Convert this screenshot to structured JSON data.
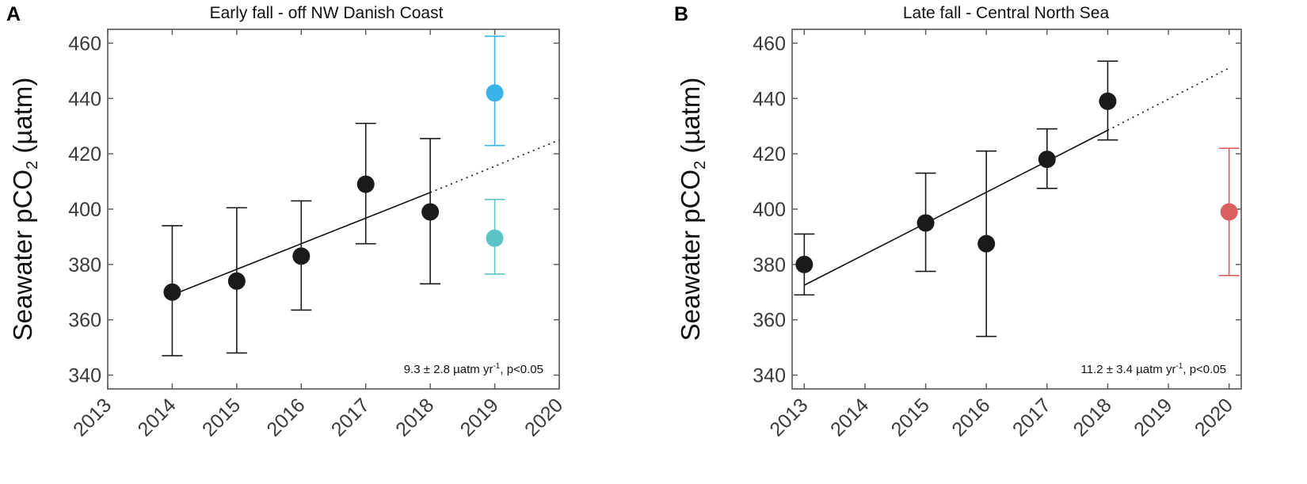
{
  "chart_data": [
    {
      "type": "scatter",
      "panel_label": "A",
      "title": "Early fall - off NW Danish Coast",
      "ylabel_main": "Seawater pCO",
      "ylabel_sub": "2",
      "ylabel_unit": " (µatm)",
      "xlabel": "",
      "xlim": [
        2013,
        2020
      ],
      "ylim": [
        335,
        465
      ],
      "xticks": [
        2013,
        2014,
        2015,
        2016,
        2017,
        2018,
        2019,
        2020
      ],
      "yticks": [
        340,
        360,
        380,
        400,
        420,
        440,
        460
      ],
      "colors": {
        "main": "#1a1a1a",
        "extra_1": "#3ab4e8",
        "extra_2": "#5cc4c8",
        "axes": "#555555"
      },
      "series": [
        {
          "name": "main",
          "color": "#1a1a1a",
          "points": [
            {
              "x": 2014,
              "y": 370,
              "lo": 347,
              "hi": 394
            },
            {
              "x": 2015,
              "y": 374,
              "lo": 348,
              "hi": 400.5
            },
            {
              "x": 2016,
              "y": 383,
              "lo": 363.5,
              "hi": 403
            },
            {
              "x": 2017,
              "y": 409,
              "lo": 387.5,
              "hi": 431
            },
            {
              "x": 2018,
              "y": 399,
              "lo": 373,
              "hi": 425.5
            }
          ]
        },
        {
          "name": "2019 (blue)",
          "color": "#3ab4e8",
          "points": [
            {
              "x": 2019,
              "y": 442,
              "lo": 423,
              "hi": 462.5
            }
          ]
        },
        {
          "name": "2019 (teal)",
          "color": "#5cc4c8",
          "points": [
            {
              "x": 2019,
              "y": 389.5,
              "lo": 376.5,
              "hi": 403.5
            }
          ]
        }
      ],
      "trend": {
        "x_start": 2014,
        "y_start": 369,
        "x_solid_end": 2018,
        "y_solid_end": 406,
        "x_end": 2020,
        "y_end": 425
      },
      "annotation": {
        "prefix": "9.3 ± 2.8 µatm yr",
        "sup": "-1",
        "suffix": ", p<0.05"
      }
    },
    {
      "type": "scatter",
      "panel_label": "B",
      "title": "Late fall - Central North Sea",
      "ylabel_main": "Seawater pCO",
      "ylabel_sub": "2",
      "ylabel_unit": " (µatm)",
      "xlabel": "",
      "xlim": [
        2012.8,
        2020.2
      ],
      "ylim": [
        335,
        465
      ],
      "xticks": [
        2013,
        2014,
        2015,
        2016,
        2017,
        2018,
        2019,
        2020
      ],
      "xtick_positions": [
        2013,
        2014,
        2015,
        2016,
        2017,
        2018,
        2019,
        2020
      ],
      "xtick_display_x": [
        2013,
        2014.55,
        2015,
        2016,
        2017,
        2018,
        2019,
        2020
      ],
      "yticks": [
        340,
        360,
        380,
        400,
        420,
        440,
        460
      ],
      "colors": {
        "main": "#1a1a1a",
        "extra_1": "#d9605f",
        "axes": "#555555"
      },
      "series": [
        {
          "name": "main",
          "color": "#1a1a1a",
          "points": [
            {
              "x": 2013,
              "y": 380,
              "lo": 369,
              "hi": 391
            },
            {
              "x": 2015,
              "y": 395,
              "lo": 377.5,
              "hi": 413
            },
            {
              "x": 2016,
              "y": 387.5,
              "lo": 354,
              "hi": 421
            },
            {
              "x": 2017,
              "y": 418,
              "lo": 407.5,
              "hi": 429
            },
            {
              "x": 2018,
              "y": 439,
              "lo": 425,
              "hi": 453.5
            }
          ]
        },
        {
          "name": "2020 (red)",
          "color": "#d9605f",
          "points": [
            {
              "x": 2020,
              "y": 399,
              "lo": 376,
              "hi": 422
            }
          ]
        }
      ],
      "trend": {
        "x_start": 2013,
        "y_start": 372.5,
        "x_solid_end": 2018,
        "y_solid_end": 428.5,
        "x_end": 2020,
        "y_end": 451
      },
      "annotation": {
        "prefix": "11.2 ± 3.4 µatm yr",
        "sup": "-1",
        "suffix": ", p<0.05"
      }
    }
  ]
}
